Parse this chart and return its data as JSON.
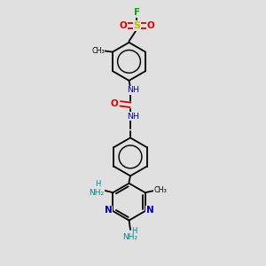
{
  "bg_color": "#e0e0e0",
  "bond_color": "#000000",
  "N_color": "#0000bb",
  "O_color": "#dd0000",
  "S_color": "#bbbb00",
  "F_color": "#00aa00",
  "NH_color": "#008888",
  "lw": 1.3,
  "figsize": [
    3.0,
    3.0
  ],
  "dpi": 100,
  "xlim": [
    0,
    6
  ],
  "ylim": [
    0,
    10
  ]
}
